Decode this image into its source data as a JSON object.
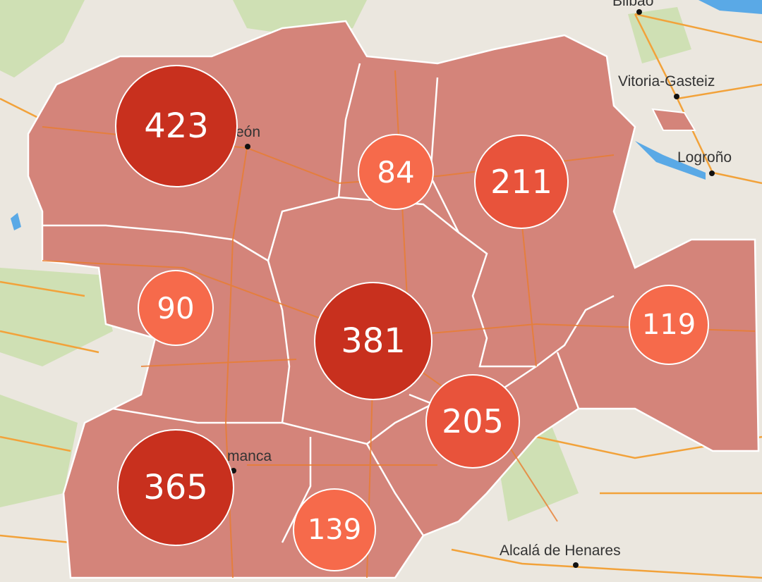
{
  "colors": {
    "region_fill": "#d4847a",
    "land": "#ebe7df",
    "green": "#cfe0b4",
    "water": "#5aa9e6",
    "road": "#f2a23a",
    "cluster_large": "#c8301e",
    "cluster_medium": "#e8533b",
    "cluster_small": "#f66a4b"
  },
  "cities": [
    {
      "name": "Bilbao"
    },
    {
      "name": "Vitoria-Gasteiz"
    },
    {
      "name": "Logroño"
    },
    {
      "name": "eón"
    },
    {
      "name": "manca"
    },
    {
      "name": "Alcalá de Henares"
    }
  ],
  "clusters": [
    {
      "count": "423",
      "size": "large"
    },
    {
      "count": "84",
      "size": "small"
    },
    {
      "count": "211",
      "size": "medium"
    },
    {
      "count": "90",
      "size": "small"
    },
    {
      "count": "381",
      "size": "large"
    },
    {
      "count": "119",
      "size": "small"
    },
    {
      "count": "205",
      "size": "medium"
    },
    {
      "count": "365",
      "size": "large"
    },
    {
      "count": "139",
      "size": "small"
    }
  ]
}
